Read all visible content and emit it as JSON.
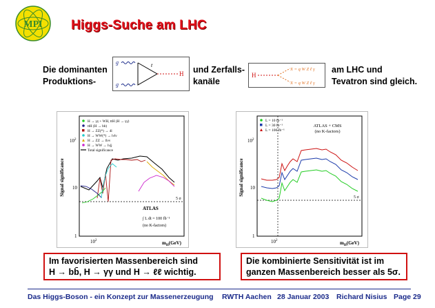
{
  "header": {
    "logo_text": "MPI",
    "title": "Higgs-Suche am LHC"
  },
  "intro": {
    "left_line1": "Die dominanten",
    "left_line2": "Produktions-",
    "middle_line1": "und Zerfalls-",
    "middle_line2": "kanäle",
    "right_line1": "am LHC und",
    "right_line2": "Tevatron sind gleich."
  },
  "diagram_production": {
    "g_top": "g",
    "g_bottom": "g",
    "quark": "t",
    "higgs": "H"
  },
  "diagram_decay": {
    "higgs": "H",
    "upper": "X = q W Z ℓ γ",
    "lower": "X = q W Z ℓ γ"
  },
  "plot_left": {
    "ylabel": "Signal significance",
    "xlabel": "m",
    "xlabel_sub": "H",
    "xlabel_unit": "(GeV)",
    "y_ticks": [
      "1",
      "10",
      "10"
    ],
    "y_tick_sup": "2",
    "x_tick": "10",
    "x_tick_sup": "2",
    "five_sigma": "5 σ",
    "legend": [
      "H → γγ + WH, ttH (H → γγ)",
      "ttH (H → bb)",
      "H → ZZ(*) → 4l",
      "H → WW(*) → lνlν",
      "H → ZZ → llνν",
      "H → WW → lνjj",
      "Total significance"
    ],
    "atlas": "ATLAS",
    "lumi": "∫ L dt = 100 fb⁻¹",
    "kfactors": "(no K-factors)"
  },
  "plot_right": {
    "ylabel": "Signal significance",
    "xlabel": "m",
    "xlabel_sub": "H",
    "xlabel_unit": "(GeV)",
    "y_ticks": [
      "1",
      "10",
      "10"
    ],
    "y_tick_sup": "2",
    "x_tick": "10",
    "x_tick_sup": "2",
    "five_sigma": "5 σ",
    "legend": [
      "L = 10 fb⁻¹",
      "L = 30 fb⁻¹",
      "L = 100 fb⁻¹"
    ],
    "title_line1": "ATLAS + CMS",
    "title_line2": "(no K-factors)"
  },
  "notes": {
    "left_line1": "Im favorisierten Massenbereich sind",
    "left_line2": "H → bb̄, H → γγ und H → ℓℓ wichtig.",
    "right_line1": "Die kombinierte Sensitivität ist im",
    "right_line2": "ganzen Massenbereich besser als 5σ."
  },
  "footer": {
    "talk": "Das Higgs-Boson - ein Konzept zur Massenerzeugung",
    "institute": "RWTH Aachen",
    "date": "28 Januar 2003",
    "author": "Richard Nisius",
    "page": "Page 29"
  },
  "colors": {
    "title_red": "#e0101a",
    "footer_blue": "#1a2a8a",
    "logo_yellow": "#f4e000"
  }
}
